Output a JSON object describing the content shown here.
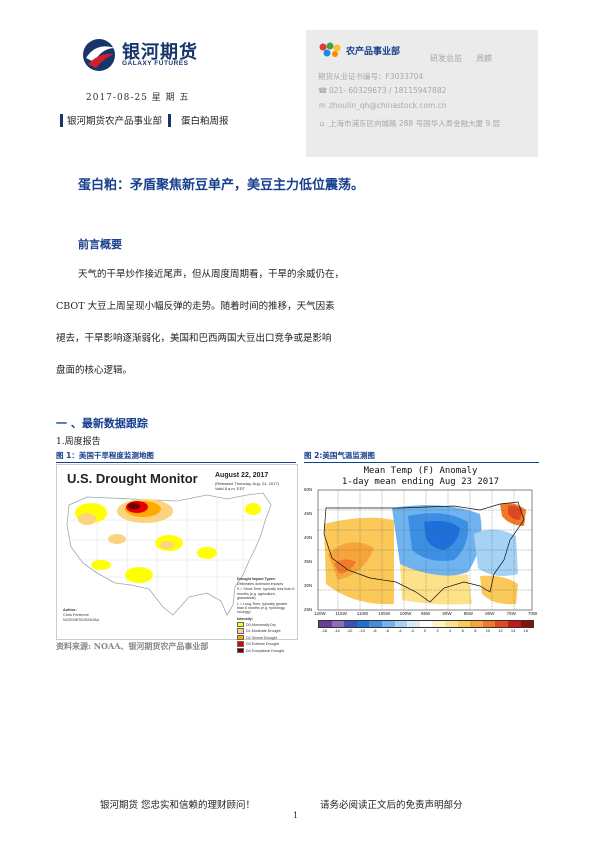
{
  "header": {
    "logo_cn": "银河期货",
    "logo_en": "GALAXY FUTURES",
    "date": "2017-08-25 星 期 五",
    "department": "银河期货农产品事业部",
    "report_type": "蛋白粕周报"
  },
  "contact": {
    "dept": "农产品事业部",
    "role": "研发总监",
    "name": "周麟",
    "license": "期货从业证书编号：F3033704",
    "phone": "021- 60329673 / 18115947882",
    "email": "zhoulin_qh@chinastock.com.cn",
    "address": "上海市浦东区向城路 288 号国华人寿金融大厦 9 层"
  },
  "title": "蛋白粕：矛盾聚焦新豆单产，美豆主力低位震荡。",
  "intro": {
    "heading": "前言概要",
    "lines": [
      "天气的干旱炒作接近尾声，但从周度周期看，干旱的余威仍在，",
      "CBOT 大豆上周呈现小幅反弹的走势。随着时间的推移，天气因素",
      "褪去，干旱影响逐渐弱化，美国和巴西两国大豆出口竞争或是影响",
      "盘面的核心逻辑。"
    ]
  },
  "section1": {
    "heading": "一 、最新数据跟踪",
    "sub": "1.周度报告",
    "fig1_caption": "图 1：美国干旱程度监测地图",
    "fig2_caption": "图 2:美国气温监测图",
    "source": "资料来源: NOAA、银河期货农产品事业部"
  },
  "drought_map": {
    "title": "U.S. Drought Monitor",
    "date": "August 22, 2017",
    "release": "(Released Thursday, Aug. 24, 2017)",
    "valid": "Valid 8 a.m. EDT",
    "legend_title": "Drought Impact Types:",
    "legend_items": [
      "Delineates dominant impacts",
      "S = Short-Term, typically less than 6 months (e.g. agriculture, grasslands)",
      "L = Long-Term, typically greater than 6 months (e.g. hydrology, ecology)"
    ],
    "intensity_title": "Intensity:",
    "intensity": [
      {
        "label": "D0 Abnormally Dry",
        "color": "#ffff00"
      },
      {
        "label": "D1 Moderate Drought",
        "color": "#fcd37f"
      },
      {
        "label": "D2 Severe Drought",
        "color": "#ffaa00"
      },
      {
        "label": "D3 Extreme Drought",
        "color": "#e60000"
      },
      {
        "label": "D4 Exceptional Drought",
        "color": "#730000"
      }
    ],
    "author_label": "Author:",
    "author": "Chris Fenimore",
    "author_org": "NCEI/NESDIS/NOAA"
  },
  "temp_map": {
    "title_line1": "Mean Temp (F) Anomaly",
    "title_line2": "1-day mean ending Aug 23 2017",
    "lat_labels": [
      "50N",
      "45N",
      "40N",
      "35N",
      "30N",
      "25N"
    ],
    "lon_labels": [
      "120W",
      "115W",
      "110W",
      "105W",
      "100W",
      "95W",
      "90W",
      "85W",
      "80W",
      "75W",
      "70W"
    ],
    "colorbar_labels": [
      "-16",
      "-14",
      "-12",
      "-10",
      "-8",
      "-6",
      "-4",
      "-2",
      "0",
      "2",
      "4",
      "6",
      "8",
      "10",
      "12",
      "14",
      "16"
    ],
    "colorbar_colors": [
      "#6a3d9a",
      "#8a6fc1",
      "#3f51b5",
      "#1e6fd9",
      "#3d8fe6",
      "#6fb3f0",
      "#a5d2f5",
      "#d4ebfa",
      "#ffffff",
      "#fdf3c4",
      "#fde28a",
      "#fbc85a",
      "#f7a43b",
      "#f07a2a",
      "#e0491f",
      "#c21b17",
      "#8e0c0c"
    ]
  },
  "footer": {
    "left": "银河期货 您忠实和信赖的理财顾问！",
    "right": "请务必阅读正文后的免责声明部分",
    "page": "1"
  }
}
